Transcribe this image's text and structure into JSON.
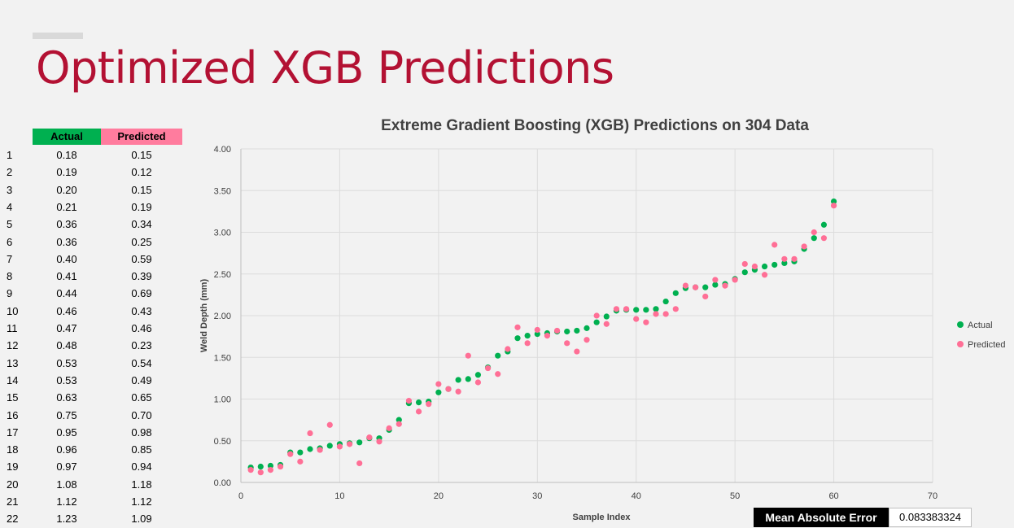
{
  "slide": {
    "title": "Optimized XGB Predictions"
  },
  "table": {
    "headers": {
      "actual": "Actual",
      "predicted": "Predicted"
    },
    "rows": [
      {
        "idx": "1",
        "actual": "0.18",
        "predicted": "0.15"
      },
      {
        "idx": "2",
        "actual": "0.19",
        "predicted": "0.12"
      },
      {
        "idx": "3",
        "actual": "0.20",
        "predicted": "0.15"
      },
      {
        "idx": "4",
        "actual": "0.21",
        "predicted": "0.19"
      },
      {
        "idx": "5",
        "actual": "0.36",
        "predicted": "0.34"
      },
      {
        "idx": "6",
        "actual": "0.36",
        "predicted": "0.25"
      },
      {
        "idx": "7",
        "actual": "0.40",
        "predicted": "0.59"
      },
      {
        "idx": "8",
        "actual": "0.41",
        "predicted": "0.39"
      },
      {
        "idx": "9",
        "actual": "0.44",
        "predicted": "0.69"
      },
      {
        "idx": "10",
        "actual": "0.46",
        "predicted": "0.43"
      },
      {
        "idx": "11",
        "actual": "0.47",
        "predicted": "0.46"
      },
      {
        "idx": "12",
        "actual": "0.48",
        "predicted": "0.23"
      },
      {
        "idx": "13",
        "actual": "0.53",
        "predicted": "0.54"
      },
      {
        "idx": "14",
        "actual": "0.53",
        "predicted": "0.49"
      },
      {
        "idx": "15",
        "actual": "0.63",
        "predicted": "0.65"
      },
      {
        "idx": "16",
        "actual": "0.75",
        "predicted": "0.70"
      },
      {
        "idx": "17",
        "actual": "0.95",
        "predicted": "0.98"
      },
      {
        "idx": "18",
        "actual": "0.96",
        "predicted": "0.85"
      },
      {
        "idx": "19",
        "actual": "0.97",
        "predicted": "0.94"
      },
      {
        "idx": "20",
        "actual": "1.08",
        "predicted": "1.18"
      },
      {
        "idx": "21",
        "actual": "1.12",
        "predicted": "1.12"
      },
      {
        "idx": "22",
        "actual": "1.23",
        "predicted": "1.09"
      }
    ]
  },
  "metric": {
    "label": "Mean Absolute Error",
    "value": "0.083383324"
  },
  "chart_data": {
    "type": "scatter",
    "title": "Extreme Gradient Boosting (XGB) Predictions on 304 Data",
    "xlabel": "Sample Index",
    "ylabel": "Weld Depth (mm)",
    "xlim": [
      0,
      70
    ],
    "ylim": [
      0,
      4
    ],
    "x_ticks": [
      0,
      10,
      20,
      30,
      40,
      50,
      60,
      70
    ],
    "y_ticks": [
      0,
      0.5,
      1,
      1.5,
      2,
      2.5,
      3,
      3.5,
      4
    ],
    "grid": true,
    "legend_position": "right",
    "x": [
      1,
      2,
      3,
      4,
      5,
      6,
      7,
      8,
      9,
      10,
      11,
      12,
      13,
      14,
      15,
      16,
      17,
      18,
      19,
      20,
      21,
      22,
      23,
      24,
      25,
      26,
      27,
      28,
      29,
      30,
      31,
      32,
      33,
      34,
      35,
      36,
      37,
      38,
      39,
      40,
      41,
      42,
      43,
      44,
      45,
      46,
      47,
      48,
      49,
      50,
      51,
      52,
      53,
      54,
      55,
      56,
      57,
      58,
      59,
      60
    ],
    "series": [
      {
        "name": "Actual",
        "color": "#00b050",
        "values": [
          0.18,
          0.19,
          0.2,
          0.21,
          0.36,
          0.36,
          0.4,
          0.41,
          0.44,
          0.46,
          0.47,
          0.48,
          0.53,
          0.53,
          0.63,
          0.75,
          0.95,
          0.96,
          0.97,
          1.08,
          1.12,
          1.23,
          1.24,
          1.29,
          1.38,
          1.52,
          1.57,
          1.73,
          1.76,
          1.78,
          1.79,
          1.81,
          1.81,
          1.82,
          1.85,
          1.92,
          1.99,
          2.06,
          2.07,
          2.07,
          2.07,
          2.08,
          2.17,
          2.27,
          2.33,
          2.34,
          2.34,
          2.37,
          2.38,
          2.44,
          2.52,
          2.55,
          2.59,
          2.61,
          2.63,
          2.65,
          2.8,
          2.93,
          3.09,
          3.37
        ]
      },
      {
        "name": "Predicted",
        "color": "#ff6f96",
        "values": [
          0.15,
          0.12,
          0.15,
          0.19,
          0.34,
          0.25,
          0.59,
          0.39,
          0.69,
          0.43,
          0.46,
          0.23,
          0.54,
          0.49,
          0.65,
          0.7,
          0.98,
          0.85,
          0.94,
          1.18,
          1.12,
          1.09,
          1.52,
          1.2,
          1.37,
          1.3,
          1.6,
          1.86,
          1.67,
          1.83,
          1.76,
          1.82,
          1.67,
          1.57,
          1.71,
          2.0,
          1.9,
          2.08,
          2.08,
          1.96,
          1.92,
          2.02,
          2.02,
          2.08,
          2.36,
          2.34,
          2.23,
          2.43,
          2.36,
          2.43,
          2.62,
          2.59,
          2.49,
          2.85,
          2.68,
          2.68,
          2.83,
          3.0,
          2.93,
          3.32
        ]
      }
    ]
  }
}
